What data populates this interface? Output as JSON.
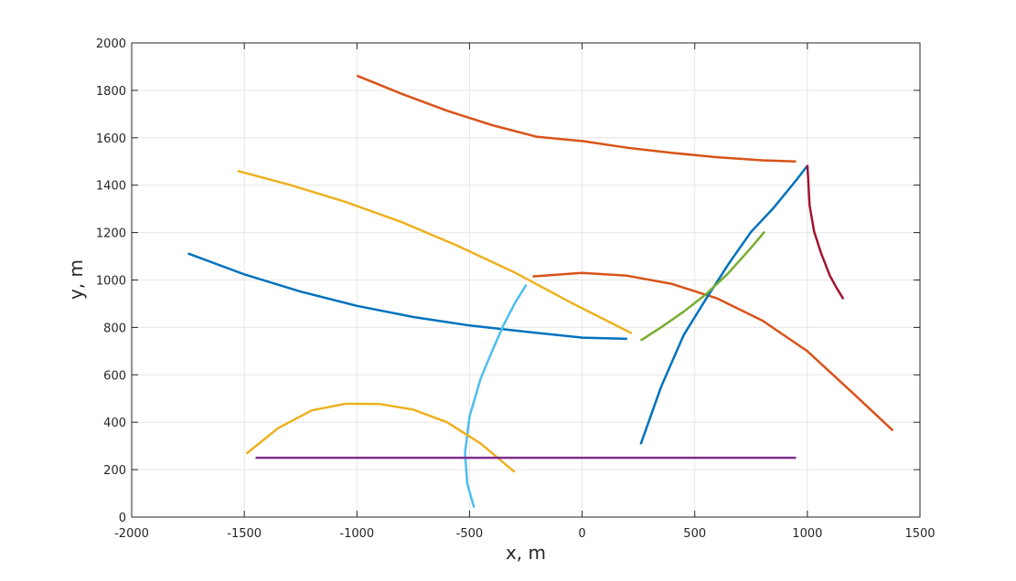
{
  "chart_data": {
    "type": "line",
    "title": "",
    "xlabel": "x, m",
    "ylabel": "y, m",
    "xlim": [
      -2000,
      1500
    ],
    "ylim": [
      0,
      2000
    ],
    "xticks": [
      -2000,
      -1500,
      -1000,
      -500,
      0,
      500,
      1000,
      1500
    ],
    "yticks": [
      0,
      200,
      400,
      600,
      800,
      1000,
      1200,
      1400,
      1600,
      1800,
      2000
    ],
    "xtick_labels": [
      "-2000",
      "-1500",
      "-1000",
      "-500",
      "0",
      "500",
      "1000",
      "1500"
    ],
    "ytick_labels": [
      "0",
      "200",
      "400",
      "600",
      "800",
      "1000",
      "1200",
      "1400",
      "1600",
      "1800",
      "2000"
    ],
    "grid": true,
    "legend": "none",
    "series": [
      {
        "color": "#D95319",
        "x": [
          -1000,
          -800,
          -600,
          -400,
          -200,
          0,
          200,
          400,
          600,
          800,
          950
        ],
        "y": [
          1862,
          1785,
          1714,
          1653,
          1604,
          1586,
          1558,
          1536,
          1518,
          1505,
          1500
        ]
      },
      {
        "color": "#EDB120",
        "x": [
          -1530,
          -1300,
          -1050,
          -800,
          -550,
          -300,
          -50,
          220
        ],
        "y": [
          1460,
          1402,
          1329,
          1244,
          1143,
          1032,
          905,
          775
        ]
      },
      {
        "color": "#0072BD",
        "x": [
          -1750,
          -1500,
          -1250,
          -1000,
          -750,
          -500,
          -250,
          0,
          200
        ],
        "y": [
          1112,
          1024,
          951,
          891,
          844,
          808,
          782,
          757,
          752
        ]
      },
      {
        "color": "#D95319",
        "x": [
          -220,
          0,
          200,
          400,
          600,
          800,
          1000,
          1200,
          1380
        ],
        "y": [
          1015,
          1030,
          1018,
          983,
          922,
          829,
          700,
          525,
          365
        ]
      },
      {
        "color": "#4DBEEE",
        "x": [
          -248,
          -300,
          -350,
          -400,
          -450,
          -500,
          -520,
          -510,
          -480
        ],
        "y": [
          980,
          900,
          808,
          700,
          585,
          424,
          270,
          140,
          40
        ]
      },
      {
        "color": "#EDB120",
        "x": [
          -1490,
          -1350,
          -1200,
          -1050,
          -900,
          -750,
          -600,
          -450,
          -300
        ],
        "y": [
          268,
          375,
          450,
          478,
          477,
          453,
          400,
          310,
          190
        ]
      },
      {
        "color": "#7E2F8E",
        "x": [
          -1450,
          950
        ],
        "y": [
          250,
          250
        ]
      },
      {
        "color": "#0072BD",
        "x": [
          260,
          350,
          450,
          550,
          650,
          750,
          850,
          950,
          1000
        ],
        "y": [
          307,
          548,
          766,
          920,
          1068,
          1203,
          1304,
          1420,
          1482
        ]
      },
      {
        "color": "#77AC30",
        "x": [
          260,
          350,
          450,
          550,
          650,
          750,
          810
        ],
        "y": [
          745,
          800,
          866,
          940,
          1030,
          1136,
          1204
        ]
      },
      {
        "color": "#A2142F",
        "x": [
          1000,
          1010,
          1030,
          1060,
          1100,
          1130,
          1160
        ],
        "y": [
          1485,
          1315,
          1205,
          1116,
          1018,
          966,
          920
        ]
      }
    ]
  }
}
